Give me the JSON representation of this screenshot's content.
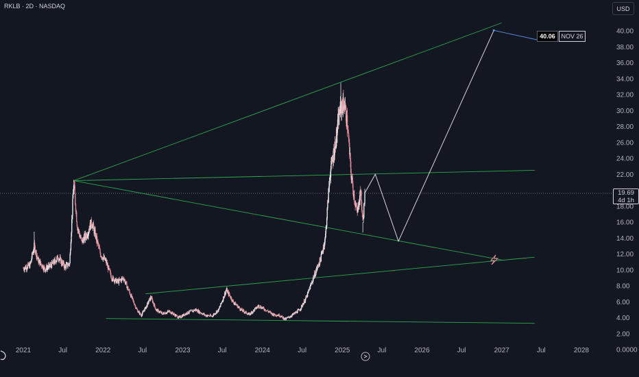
{
  "header": {
    "symbol": "RKLB · 2D · NASDAQ",
    "currency": "USD"
  },
  "price_axis": {
    "current_price": "19.69",
    "countdown": "4d 1h"
  },
  "projection": {
    "target_value": "40.06",
    "target_date": "NOV 26"
  },
  "colors": {
    "background": "#131722",
    "candle_up": "#e8e8ea",
    "candle_down": "#e08a94",
    "trendline": "#2fa84f",
    "projection_line": "#d8d8d8",
    "text": "#b2b5be"
  },
  "icons": [
    "tradingview-logo-icon",
    "replay-icon",
    "flash-icon"
  ],
  "chart_data": {
    "type": "candlestick",
    "title": "",
    "x_ticks": [
      "2021",
      "Jul",
      "2022",
      "Jul",
      "2023",
      "Jul",
      "2024",
      "Jul",
      "2025",
      "Jul",
      "2026",
      "Jul",
      "2027",
      "Jul",
      "2028"
    ],
    "y_ticks": [
      "40.00",
      "38.00",
      "36.00",
      "34.00",
      "32.00",
      "30.00",
      "28.00",
      "26.00",
      "24.00",
      "22.00",
      "20.00",
      "18.00",
      "16.00",
      "14.00",
      "12.00",
      "10.00",
      "8.00",
      "6.00",
      "4.00",
      "2.00",
      "0.0000"
    ],
    "ylim": [
      0,
      41
    ],
    "price_path": [
      [
        "2021-01-01",
        10.2
      ],
      [
        "2021-02-01",
        10.6
      ],
      [
        "2021-02-20",
        13.0
      ],
      [
        "2021-03-10",
        11.2
      ],
      [
        "2021-04-10",
        10.1
      ],
      [
        "2021-05-10",
        10.6
      ],
      [
        "2021-06-10",
        11.6
      ],
      [
        "2021-07-10",
        10.4
      ],
      [
        "2021-08-01",
        10.8
      ],
      [
        "2021-08-20",
        21.0
      ],
      [
        "2021-09-05",
        15.5
      ],
      [
        "2021-09-25",
        13.5
      ],
      [
        "2021-10-20",
        14.5
      ],
      [
        "2021-11-10",
        16.0
      ],
      [
        "2021-12-01",
        14.0
      ],
      [
        "2021-12-20",
        12.0
      ],
      [
        "2022-01-15",
        11.0
      ],
      [
        "2022-02-10",
        9.0
      ],
      [
        "2022-03-10",
        8.5
      ],
      [
        "2022-04-05",
        9.0
      ],
      [
        "2022-05-05",
        7.0
      ],
      [
        "2022-06-05",
        5.0
      ],
      [
        "2022-06-25",
        4.3
      ],
      [
        "2022-07-20",
        5.5
      ],
      [
        "2022-08-08",
        6.6
      ],
      [
        "2022-09-01",
        5.0
      ],
      [
        "2022-10-01",
        4.5
      ],
      [
        "2022-11-01",
        4.8
      ],
      [
        "2022-12-15",
        4.0
      ],
      [
        "2023-01-20",
        4.6
      ],
      [
        "2023-03-01",
        5.0
      ],
      [
        "2023-04-15",
        4.3
      ],
      [
        "2023-05-15",
        4.2
      ],
      [
        "2023-06-15",
        5.0
      ],
      [
        "2023-07-20",
        7.5
      ],
      [
        "2023-08-20",
        6.0
      ],
      [
        "2023-09-25",
        5.0
      ],
      [
        "2023-11-01",
        4.4
      ],
      [
        "2023-12-15",
        5.5
      ],
      [
        "2024-01-15",
        5.0
      ],
      [
        "2024-02-20",
        4.4
      ],
      [
        "2024-03-20",
        4.3
      ],
      [
        "2024-04-15",
        3.8
      ],
      [
        "2024-05-15",
        4.3
      ],
      [
        "2024-06-20",
        5.0
      ],
      [
        "2024-07-20",
        6.5
      ],
      [
        "2024-08-15",
        8.5
      ],
      [
        "2024-09-25",
        11.5
      ],
      [
        "2024-10-15",
        14.0
      ],
      [
        "2024-11-05",
        22.0
      ],
      [
        "2024-12-01",
        26.0
      ],
      [
        "2024-12-20",
        30.0
      ],
      [
        "2025-01-10",
        31.0
      ],
      [
        "2025-01-25",
        28.0
      ],
      [
        "2025-02-10",
        22.0
      ],
      [
        "2025-02-25",
        19.0
      ],
      [
        "2025-03-10",
        17.0
      ],
      [
        "2025-03-25",
        20.0
      ],
      [
        "2025-04-05",
        16.0
      ],
      [
        "2025-04-15",
        19.7
      ]
    ],
    "high_low": [
      [
        "2021-02-20",
        14.8
      ],
      [
        "2021-08-20",
        21.3
      ],
      [
        "2024-12-25",
        33.5
      ],
      [
        "2025-04-05",
        14.7
      ]
    ],
    "trendlines": [
      {
        "from": [
          "2021-08-20",
          21.2
        ],
        "to": [
          "2027-01-01",
          41.0
        ]
      },
      {
        "from": [
          "2021-08-20",
          21.2
        ],
        "to": [
          "2027-06-01",
          22.5
        ]
      },
      {
        "from": [
          "2021-08-20",
          21.2
        ],
        "to": [
          "2027-01-10",
          11.2
        ]
      },
      {
        "from": [
          "2022-07-15",
          7.0
        ],
        "to": [
          "2027-06-01",
          11.6
        ]
      },
      {
        "from": [
          "2022-01-15",
          3.9
        ],
        "to": [
          "2027-06-01",
          3.3
        ]
      }
    ],
    "projection_path": [
      [
        "2025-04-15",
        19.7
      ],
      [
        "2025-06-01",
        22.0
      ],
      [
        "2025-09-15",
        13.6
      ],
      [
        "2026-11-26",
        40.06
      ]
    ],
    "projection_target": {
      "price": 40.06,
      "date": "NOV 26"
    }
  }
}
